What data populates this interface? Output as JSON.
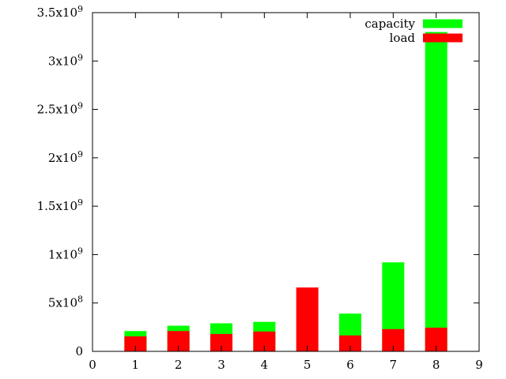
{
  "chart_data": {
    "type": "bar",
    "stacked": false,
    "overlaid": true,
    "categories": [
      1,
      2,
      3,
      4,
      5,
      6,
      7,
      8
    ],
    "series": [
      {
        "name": "capacity",
        "color": "#00ff00",
        "values": [
          210000000,
          265000000,
          290000000,
          305000000,
          0,
          390000000,
          920000000,
          3300000000
        ]
      },
      {
        "name": "load",
        "color": "#ff0000",
        "values": [
          155000000,
          210000000,
          180000000,
          205000000,
          660000000,
          165000000,
          230000000,
          245000000
        ]
      }
    ],
    "xlim": [
      0,
      9
    ],
    "ylim": [
      0,
      3500000000
    ],
    "x_ticks": [
      {
        "value": 0,
        "label": "0"
      },
      {
        "value": 1,
        "label": "1"
      },
      {
        "value": 2,
        "label": "2"
      },
      {
        "value": 3,
        "label": "3"
      },
      {
        "value": 4,
        "label": "4"
      },
      {
        "value": 5,
        "label": "5"
      },
      {
        "value": 6,
        "label": "6"
      },
      {
        "value": 7,
        "label": "7"
      },
      {
        "value": 8,
        "label": "8"
      },
      {
        "value": 9,
        "label": "9"
      }
    ],
    "y_ticks": [
      {
        "value": 0,
        "label": "0",
        "exp": ""
      },
      {
        "value": 500000000,
        "label": "5x10",
        "exp": "8"
      },
      {
        "value": 1000000000,
        "label": "1x10",
        "exp": "9"
      },
      {
        "value": 1500000000,
        "label": "1.5x10",
        "exp": "9"
      },
      {
        "value": 2000000000,
        "label": "2x10",
        "exp": "9"
      },
      {
        "value": 2500000000,
        "label": "2.5x10",
        "exp": "9"
      },
      {
        "value": 3000000000,
        "label": "3x10",
        "exp": "9"
      },
      {
        "value": 3500000000,
        "label": "3.5x10",
        "exp": "9"
      }
    ],
    "legend_position": "top-right",
    "grid": false
  }
}
